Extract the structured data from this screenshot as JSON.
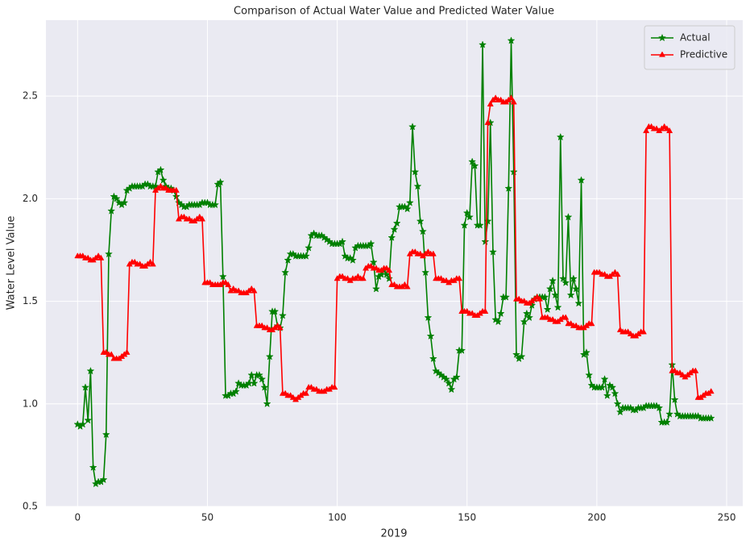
{
  "chart_data": {
    "type": "line",
    "title": "Comparison of Actual Water Value and Predicted Water Value",
    "xlabel": "2019",
    "ylabel": "Water Level Value",
    "xlim": [
      -12.2,
      256.2
    ],
    "ylim": [
      0.5,
      2.87
    ],
    "xticks": [
      0,
      50,
      100,
      150,
      200,
      250
    ],
    "yticks": [
      0.5,
      {
        "value": 1,
        "label": "1.0"
      },
      1.5,
      {
        "value": 2,
        "label": "2.0"
      },
      2.5
    ],
    "grid": true,
    "legend": "upper right",
    "x": [
      0,
      1,
      2,
      3,
      4,
      5,
      6,
      7,
      8,
      9,
      10,
      11,
      12,
      13,
      14,
      15,
      16,
      17,
      18,
      19,
      20,
      21,
      22,
      23,
      24,
      25,
      26,
      27,
      28,
      29,
      30,
      31,
      32,
      33,
      34,
      35,
      36,
      37,
      38,
      39,
      40,
      41,
      42,
      43,
      44,
      45,
      46,
      47,
      48,
      49,
      50,
      51,
      52,
      53,
      54,
      55,
      56,
      57,
      58,
      59,
      60,
      61,
      62,
      63,
      64,
      65,
      66,
      67,
      68,
      69,
      70,
      71,
      72,
      73,
      74,
      75,
      76,
      77,
      78,
      79,
      80,
      81,
      82,
      83,
      84,
      85,
      86,
      87,
      88,
      89,
      90,
      91,
      92,
      93,
      94,
      95,
      96,
      97,
      98,
      99,
      100,
      101,
      102,
      103,
      104,
      105,
      106,
      107,
      108,
      109,
      110,
      111,
      112,
      113,
      114,
      115,
      116,
      117,
      118,
      119,
      120,
      121,
      122,
      123,
      124,
      125,
      126,
      127,
      128,
      129,
      130,
      131,
      132,
      133,
      134,
      135,
      136,
      137,
      138,
      139,
      140,
      141,
      142,
      143,
      144,
      145,
      146,
      147,
      148,
      149,
      150,
      151,
      152,
      153,
      154,
      155,
      156,
      157,
      158,
      159,
      160,
      161,
      162,
      163,
      164,
      165,
      166,
      167,
      168,
      169,
      170,
      171,
      172,
      173,
      174,
      175,
      176,
      177,
      178,
      179,
      180,
      181,
      182,
      183,
      184,
      185,
      186,
      187,
      188,
      189,
      190,
      191,
      192,
      193,
      194,
      195,
      196,
      197,
      198,
      199,
      200,
      201,
      202,
      203,
      204,
      205,
      206,
      207,
      208,
      209,
      210,
      211,
      212,
      213,
      214,
      215,
      216,
      217,
      218,
      219,
      220,
      221,
      222,
      223,
      224,
      225,
      226,
      227,
      228,
      229,
      230,
      231,
      232,
      233,
      234,
      235,
      236,
      237,
      238,
      239,
      240,
      241,
      242,
      243,
      244
    ],
    "series": [
      {
        "name": "Actual",
        "color": "#008000",
        "marker": "star",
        "values": [
          0.9,
          0.89,
          0.9,
          1.08,
          0.92,
          1.16,
          0.69,
          0.61,
          0.62,
          0.62,
          0.63,
          0.85,
          1.73,
          1.94,
          2.01,
          2.0,
          1.98,
          1.97,
          1.98,
          2.04,
          2.05,
          2.06,
          2.06,
          2.06,
          2.06,
          2.06,
          2.07,
          2.07,
          2.06,
          2.06,
          2.06,
          2.13,
          2.14,
          2.09,
          2.06,
          2.05,
          2.05,
          2.04,
          2.01,
          1.98,
          1.97,
          1.96,
          1.96,
          1.97,
          1.97,
          1.97,
          1.97,
          1.97,
          1.98,
          1.98,
          1.98,
          1.97,
          1.97,
          1.97,
          2.07,
          2.08,
          1.62,
          1.04,
          1.04,
          1.05,
          1.05,
          1.06,
          1.1,
          1.09,
          1.09,
          1.09,
          1.1,
          1.14,
          1.1,
          1.14,
          1.14,
          1.12,
          1.08,
          1.0,
          1.23,
          1.45,
          1.45,
          1.38,
          1.37,
          1.43,
          1.64,
          1.7,
          1.73,
          1.73,
          1.72,
          1.72,
          1.72,
          1.72,
          1.72,
          1.76,
          1.82,
          1.83,
          1.82,
          1.82,
          1.82,
          1.81,
          1.8,
          1.79,
          1.78,
          1.78,
          1.78,
          1.78,
          1.79,
          1.72,
          1.71,
          1.71,
          1.7,
          1.76,
          1.77,
          1.77,
          1.77,
          1.77,
          1.77,
          1.78,
          1.69,
          1.56,
          1.62,
          1.63,
          1.65,
          1.63,
          1.61,
          1.81,
          1.85,
          1.88,
          1.96,
          1.96,
          1.96,
          1.95,
          1.98,
          2.35,
          2.13,
          2.06,
          1.89,
          1.84,
          1.64,
          1.42,
          1.33,
          1.22,
          1.16,
          1.15,
          1.14,
          1.13,
          1.12,
          1.1,
          1.07,
          1.12,
          1.13,
          1.26,
          1.26,
          1.87,
          1.93,
          1.91,
          2.18,
          2.16,
          1.87,
          1.87,
          2.75,
          1.79,
          1.89,
          2.37,
          1.74,
          1.41,
          1.4,
          1.44,
          1.52,
          1.52,
          2.05,
          2.77,
          2.13,
          1.24,
          1.22,
          1.23,
          1.4,
          1.44,
          1.42,
          1.48,
          1.51,
          1.52,
          1.52,
          1.52,
          1.52,
          1.46,
          1.56,
          1.6,
          1.53,
          1.47,
          2.3,
          1.61,
          1.59,
          1.91,
          1.53,
          1.61,
          1.56,
          1.49,
          2.09,
          1.24,
          1.25,
          1.14,
          1.09,
          1.08,
          1.08,
          1.08,
          1.08,
          1.12,
          1.04,
          1.09,
          1.08,
          1.05,
          1.0,
          0.96,
          0.98,
          0.98,
          0.98,
          0.98,
          0.97,
          0.97,
          0.98,
          0.98,
          0.98,
          0.99,
          0.99,
          0.99,
          0.99,
          0.99,
          0.98,
          0.91,
          0.91,
          0.91,
          0.95,
          1.19,
          1.02,
          0.95,
          0.94,
          0.94,
          0.94,
          0.94,
          0.94,
          0.94,
          0.94,
          0.94,
          0.93,
          0.93,
          0.93,
          0.93,
          0.93
        ]
      },
      {
        "name": "Predictive",
        "color": "#ff0000",
        "marker": "triangle",
        "values": [
          1.72,
          1.72,
          1.72,
          1.71,
          1.71,
          1.7,
          1.7,
          1.71,
          1.72,
          1.71,
          1.25,
          1.25,
          1.24,
          1.24,
          1.22,
          1.22,
          1.22,
          1.23,
          1.24,
          1.25,
          1.68,
          1.69,
          1.69,
          1.68,
          1.68,
          1.67,
          1.67,
          1.68,
          1.69,
          1.68,
          2.04,
          2.05,
          2.06,
          2.05,
          2.05,
          2.04,
          2.04,
          2.04,
          2.04,
          1.9,
          1.91,
          1.91,
          1.9,
          1.9,
          1.89,
          1.89,
          1.9,
          1.91,
          1.9,
          1.59,
          1.59,
          1.59,
          1.58,
          1.58,
          1.58,
          1.58,
          1.59,
          1.59,
          1.58,
          1.55,
          1.56,
          1.55,
          1.55,
          1.54,
          1.54,
          1.54,
          1.55,
          1.56,
          1.55,
          1.38,
          1.38,
          1.38,
          1.37,
          1.37,
          1.36,
          1.36,
          1.37,
          1.38,
          1.37,
          1.05,
          1.05,
          1.04,
          1.04,
          1.03,
          1.02,
          1.03,
          1.04,
          1.05,
          1.05,
          1.08,
          1.08,
          1.07,
          1.07,
          1.06,
          1.06,
          1.06,
          1.07,
          1.07,
          1.08,
          1.08,
          1.61,
          1.62,
          1.62,
          1.61,
          1.61,
          1.6,
          1.61,
          1.61,
          1.62,
          1.61,
          1.61,
          1.66,
          1.67,
          1.67,
          1.66,
          1.66,
          1.65,
          1.65,
          1.66,
          1.66,
          1.65,
          1.58,
          1.58,
          1.57,
          1.57,
          1.57,
          1.58,
          1.57,
          1.73,
          1.74,
          1.74,
          1.73,
          1.73,
          1.72,
          1.73,
          1.74,
          1.73,
          1.73,
          1.61,
          1.61,
          1.61,
          1.6,
          1.6,
          1.59,
          1.6,
          1.6,
          1.61,
          1.61,
          1.45,
          1.45,
          1.45,
          1.44,
          1.44,
          1.43,
          1.43,
          1.44,
          1.45,
          1.45,
          2.37,
          2.46,
          2.48,
          2.49,
          2.48,
          2.48,
          2.47,
          2.47,
          2.48,
          2.49,
          2.47,
          1.51,
          1.51,
          1.5,
          1.5,
          1.49,
          1.49,
          1.5,
          1.51,
          1.52,
          1.51,
          1.42,
          1.42,
          1.42,
          1.41,
          1.41,
          1.4,
          1.4,
          1.41,
          1.42,
          1.42,
          1.39,
          1.39,
          1.38,
          1.38,
          1.37,
          1.37,
          1.37,
          1.38,
          1.39,
          1.39,
          1.64,
          1.64,
          1.64,
          1.63,
          1.63,
          1.62,
          1.62,
          1.63,
          1.64,
          1.63,
          1.36,
          1.35,
          1.35,
          1.35,
          1.34,
          1.33,
          1.33,
          1.34,
          1.35,
          1.35,
          2.33,
          2.35,
          2.35,
          2.34,
          2.34,
          2.33,
          2.34,
          2.35,
          2.34,
          2.33,
          1.16,
          1.16,
          1.15,
          1.15,
          1.14,
          1.13,
          1.14,
          1.15,
          1.16,
          1.16,
          1.03,
          1.03,
          1.04,
          1.05,
          1.05,
          1.06
        ]
      }
    ]
  }
}
